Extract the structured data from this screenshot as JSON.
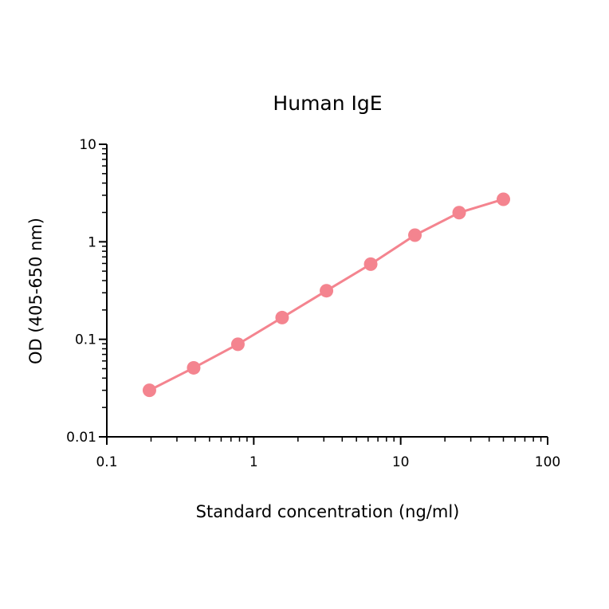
{
  "chart_data": {
    "type": "line",
    "title": "Human IgE",
    "xlabel": "Standard concentration (ng/ml)",
    "ylabel": "OD (405-650 nm)",
    "xscale": "log",
    "yscale": "log",
    "xlim": [
      0.1,
      100
    ],
    "ylim": [
      0.01,
      10
    ],
    "x_ticks": [
      "0.1",
      "1",
      "10",
      "100"
    ],
    "y_ticks": [
      "0.01",
      "0.1",
      "1",
      "10"
    ],
    "grid": false,
    "legend": null,
    "series": [
      {
        "name": "Human IgE",
        "color": "#f4848f",
        "marker": "circle",
        "x": [
          0.195,
          0.39,
          0.78,
          1.56,
          3.125,
          6.25,
          12.5,
          25,
          50
        ],
        "values": [
          0.03,
          0.051,
          0.089,
          0.167,
          0.315,
          0.59,
          1.17,
          1.99,
          2.73
        ]
      }
    ]
  }
}
